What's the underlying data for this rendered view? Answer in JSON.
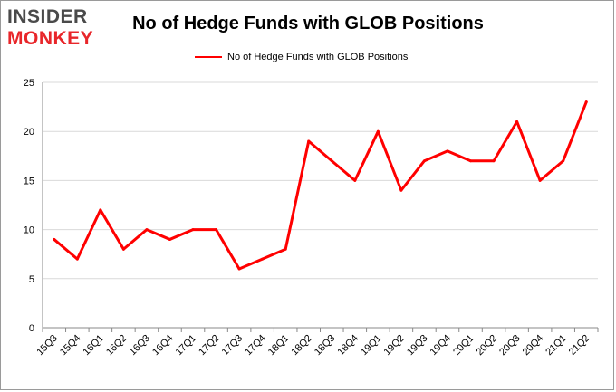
{
  "brand": {
    "logo_top": "INSIDER",
    "logo_bottom": "MONKEY",
    "logo_top_color": "#4a4a4a",
    "logo_bottom_color": "#e8262a"
  },
  "chart_data": {
    "type": "line",
    "title": "No of Hedge Funds with GLOB Positions",
    "xlabel": "",
    "ylabel": "",
    "ylim": [
      0,
      25
    ],
    "yticks": [
      0,
      5,
      10,
      15,
      20,
      25
    ],
    "grid": true,
    "legend_position": "top-center",
    "categories": [
      "15Q3",
      "15Q4",
      "16Q1",
      "16Q2",
      "16Q3",
      "16Q4",
      "17Q1",
      "17Q2",
      "17Q3",
      "17Q4",
      "18Q1",
      "18Q2",
      "18Q3",
      "18Q4",
      "19Q1",
      "19Q2",
      "19Q3",
      "19Q4",
      "20Q1",
      "20Q2",
      "20Q3",
      "20Q4",
      "21Q1",
      "21Q2"
    ],
    "series": [
      {
        "name": "No of Hedge Funds with GLOB Positions",
        "color": "#ff0000",
        "values": [
          9,
          7,
          12,
          8,
          10,
          9,
          10,
          10,
          6,
          7,
          8,
          19,
          17,
          15,
          20,
          14,
          17,
          18,
          17,
          17,
          21,
          15,
          17,
          23
        ]
      }
    ]
  }
}
